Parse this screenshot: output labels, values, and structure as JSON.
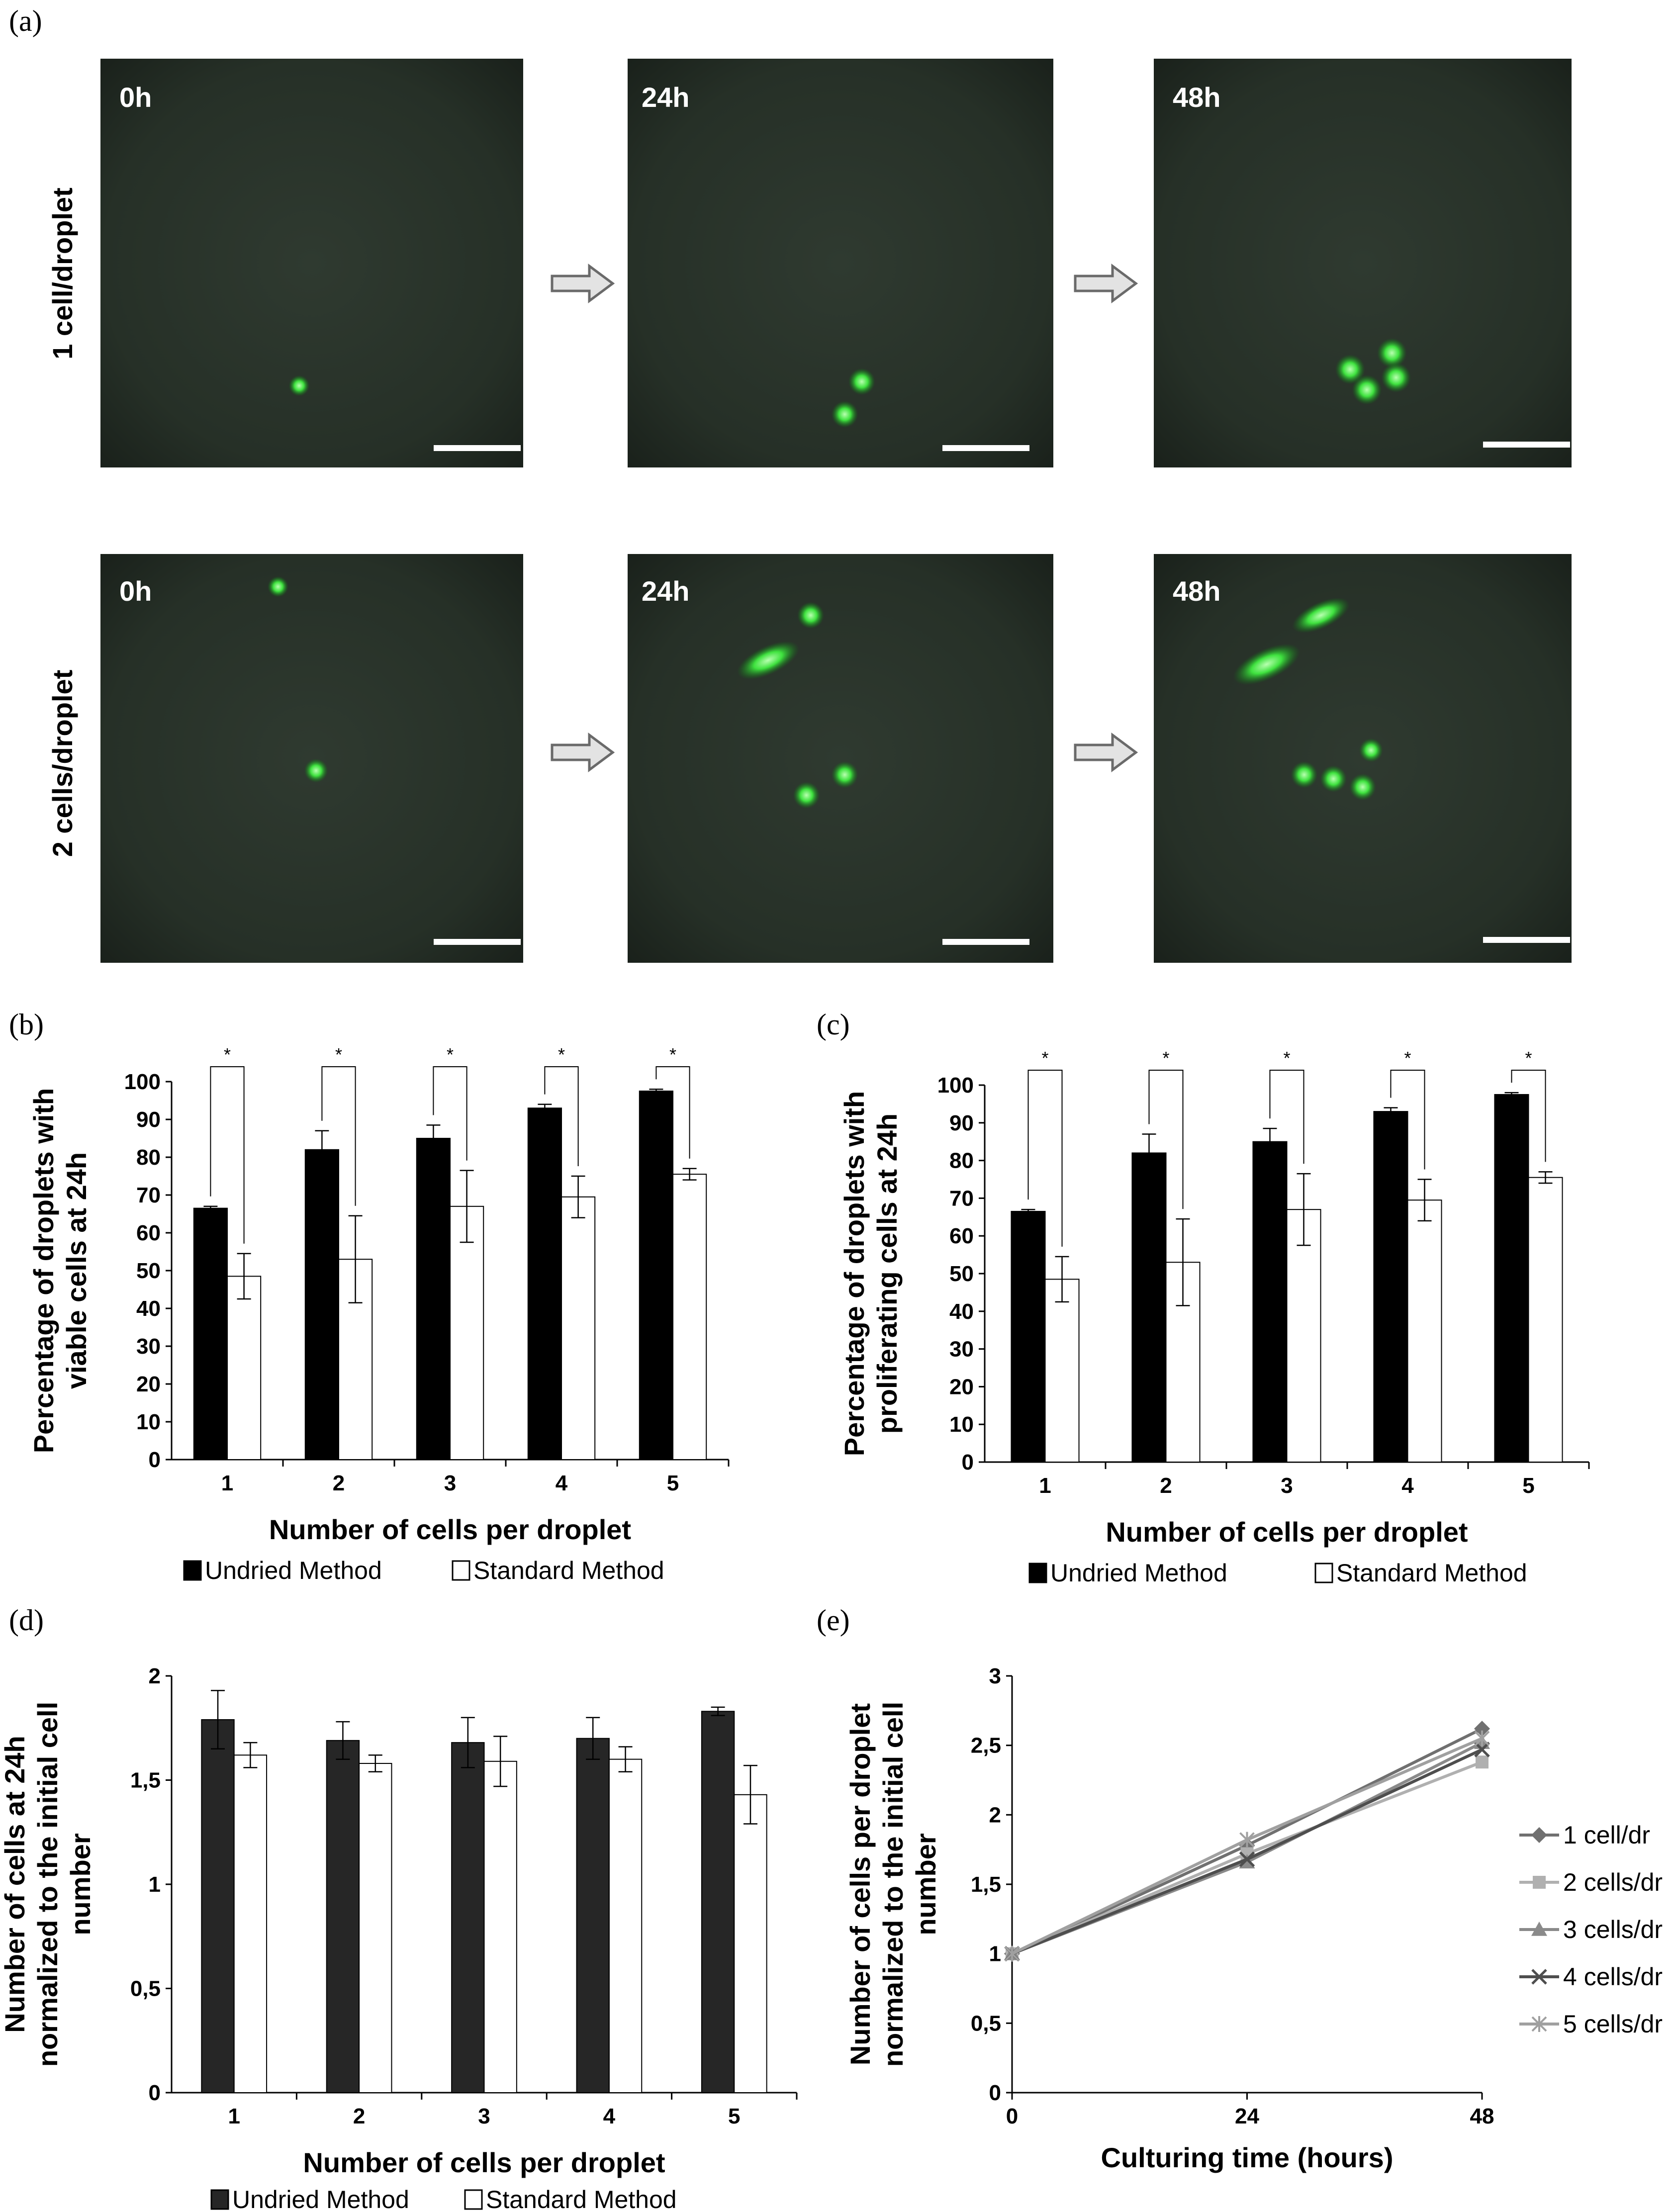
{
  "figure": {
    "panels": {
      "a": "(a)",
      "b": "(b)",
      "c": "(c)",
      "d": "(d)",
      "e": "(e)"
    }
  },
  "micrographs": {
    "rows": [
      {
        "label": "1 cell/droplet",
        "frames": [
          {
            "time": "0h",
            "cells": [
              [
                0.47,
                0.8,
                0.7
              ]
            ]
          },
          {
            "time": "24h",
            "cells": [
              [
                0.55,
                0.79,
                0.9
              ],
              [
                0.51,
                0.87,
                0.9
              ]
            ]
          },
          {
            "time": "48h",
            "cells": [
              [
                0.47,
                0.76,
                1
              ],
              [
                0.57,
                0.72,
                1
              ],
              [
                0.58,
                0.78,
                1
              ],
              [
                0.51,
                0.81,
                1
              ]
            ]
          }
        ]
      },
      {
        "label": "2 cells/droplet",
        "frames": [
          {
            "time": "0h",
            "cells": [
              [
                0.42,
                0.08,
                0.7
              ],
              [
                0.51,
                0.53,
                0.8
              ]
            ]
          },
          {
            "time": "24h",
            "cells": [
              [
                0.43,
                0.15,
                0.9
              ],
              [
                0.33,
                0.26,
                1.3
              ],
              [
                0.51,
                0.54,
                0.9
              ],
              [
                0.42,
                0.59,
                0.9
              ]
            ]
          },
          {
            "time": "48h",
            "cells": [
              [
                0.4,
                0.15,
                1.2
              ],
              [
                0.27,
                0.27,
                1.4
              ],
              [
                0.36,
                0.54,
                0.9
              ],
              [
                0.43,
                0.55,
                0.9
              ],
              [
                0.5,
                0.57,
                0.9
              ],
              [
                0.52,
                0.48,
                0.8
              ]
            ]
          }
        ]
      }
    ]
  },
  "chart_data": [
    {
      "panel": "b",
      "type": "bar",
      "categories": [
        "1",
        "2",
        "3",
        "4",
        "5"
      ],
      "series": [
        {
          "name": "Undried Method",
          "values": [
            66.5,
            82,
            85,
            93,
            97.5
          ],
          "errors": [
            0.5,
            5,
            3.5,
            1,
            0.5
          ],
          "color": "#000000"
        },
        {
          "name": "Standard Method",
          "values": [
            48.5,
            53,
            67,
            69.5,
            75.5
          ],
          "errors": [
            6,
            11.5,
            9.5,
            5.5,
            1.5
          ],
          "color": "#ffffff"
        }
      ],
      "significance": [
        "*",
        "*",
        "*",
        "*",
        "*"
      ],
      "ylabel": "Percentage of droplets with viable cells at 24h",
      "xlabel": "Number of cells per droplet",
      "ylim": [
        0,
        100
      ],
      "yticks": [
        "0",
        "10",
        "20",
        "30",
        "40",
        "50",
        "60",
        "70",
        "80",
        "90",
        "100"
      ],
      "legend": "bottom"
    },
    {
      "panel": "c",
      "type": "bar",
      "categories": [
        "1",
        "2",
        "3",
        "4",
        "5"
      ],
      "series": [
        {
          "name": "Undried Method",
          "values": [
            66.5,
            82,
            85,
            93,
            97.5
          ],
          "errors": [
            0.5,
            5,
            3.5,
            1,
            0.5
          ],
          "color": "#000000"
        },
        {
          "name": "Standard Method",
          "values": [
            48.5,
            53,
            67,
            69.5,
            75.5
          ],
          "errors": [
            6,
            11.5,
            9.5,
            5.5,
            1.5
          ],
          "color": "#ffffff"
        }
      ],
      "significance": [
        "*",
        "*",
        "*",
        "*",
        "*"
      ],
      "ylabel": "Percentage of droplets with proliferating cells at 24h",
      "xlabel": "Number of cells per droplet",
      "ylim": [
        0,
        100
      ],
      "yticks": [
        "0",
        "10",
        "20",
        "30",
        "40",
        "50",
        "60",
        "70",
        "80",
        "90",
        "100"
      ],
      "legend": "bottom"
    },
    {
      "panel": "d",
      "type": "bar",
      "categories": [
        "1",
        "2",
        "3",
        "4",
        "5"
      ],
      "series": [
        {
          "name": "Undried Method",
          "values": [
            1.79,
            1.69,
            1.68,
            1.7,
            1.83
          ],
          "errors": [
            0.14,
            0.09,
            0.12,
            0.1,
            0.02
          ],
          "color": "#262626"
        },
        {
          "name": "Standard Method",
          "values": [
            1.62,
            1.58,
            1.59,
            1.6,
            1.43
          ],
          "errors": [
            0.06,
            0.04,
            0.12,
            0.06,
            0.14
          ],
          "color": "#ffffff"
        }
      ],
      "ylabel": "Number of cells at 24h normalized to the initial cell number",
      "xlabel": "Number of cells per droplet",
      "ylim": [
        0,
        2
      ],
      "yticks": [
        "0",
        "0,5",
        "1",
        "1,5",
        "2"
      ],
      "legend": "bottom"
    },
    {
      "panel": "e",
      "type": "line",
      "x": [
        0,
        24,
        48
      ],
      "xticks": [
        "0",
        "24",
        "48"
      ],
      "series": [
        {
          "name": "1 cell/dr",
          "values": [
            1,
            1.78,
            2.62
          ],
          "color": "#707070",
          "marker": "diamond"
        },
        {
          "name": "2 cells/dr",
          "values": [
            1,
            1.72,
            2.38
          ],
          "color": "#b0b0b0",
          "marker": "square"
        },
        {
          "name": "3 cells/dr",
          "values": [
            1,
            1.66,
            2.52
          ],
          "color": "#8a8a8a",
          "marker": "triangle"
        },
        {
          "name": "4 cells/dr",
          "values": [
            1,
            1.68,
            2.47
          ],
          "color": "#4e4e4e",
          "marker": "x"
        },
        {
          "name": "5 cells/dr",
          "values": [
            1,
            1.82,
            2.55
          ],
          "color": "#a0a0a0",
          "marker": "star"
        }
      ],
      "ylabel": "Number of cells per droplet normalized to the initial cell number",
      "xlabel": "Culturing time (hours)",
      "ylim": [
        0,
        3
      ],
      "yticks": [
        "0",
        "0,5",
        "1",
        "1,5",
        "2",
        "2,5",
        "3"
      ],
      "legend": "right"
    }
  ]
}
